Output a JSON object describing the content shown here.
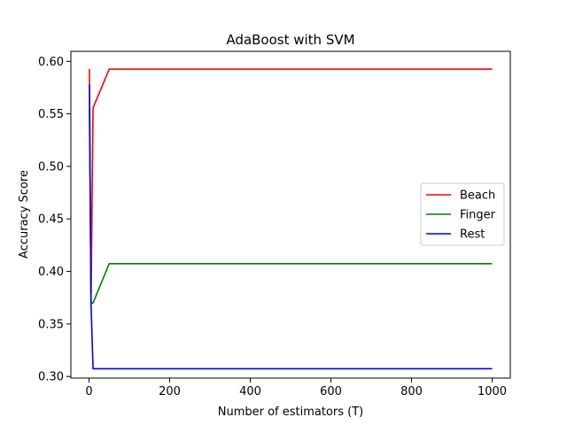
{
  "chart_data": {
    "type": "line",
    "title": "AdaBoost with SVM",
    "xlabel": "Number of estimators (T)",
    "ylabel": "Accuracy Score",
    "xlim": [
      -45,
      1045
    ],
    "ylim": [
      0.2985,
      0.6095
    ],
    "xticks": [
      0,
      200,
      400,
      600,
      800,
      1000
    ],
    "yticks": [
      0.3,
      0.35,
      0.4,
      0.45,
      0.5,
      0.55,
      0.6
    ],
    "grid": false,
    "legend_position": "center-right",
    "series": [
      {
        "name": "Beach",
        "color": "#ff0000",
        "x": [
          1,
          5,
          10,
          50,
          100,
          1000
        ],
        "y": [
          0.5926,
          0.37,
          0.5556,
          0.5926,
          0.5926,
          0.5926
        ]
      },
      {
        "name": "Finger",
        "color": "#008000",
        "x": [
          1,
          5,
          10,
          50,
          100,
          1000
        ],
        "y": [
          0.5556,
          0.37,
          0.37,
          0.4074,
          0.4074,
          0.4074
        ]
      },
      {
        "name": "Rest",
        "color": "#0000ff",
        "x": [
          1,
          5,
          10,
          50,
          100,
          1000
        ],
        "y": [
          0.5778,
          0.37,
          0.3074,
          0.3074,
          0.3074,
          0.3074
        ]
      }
    ]
  }
}
